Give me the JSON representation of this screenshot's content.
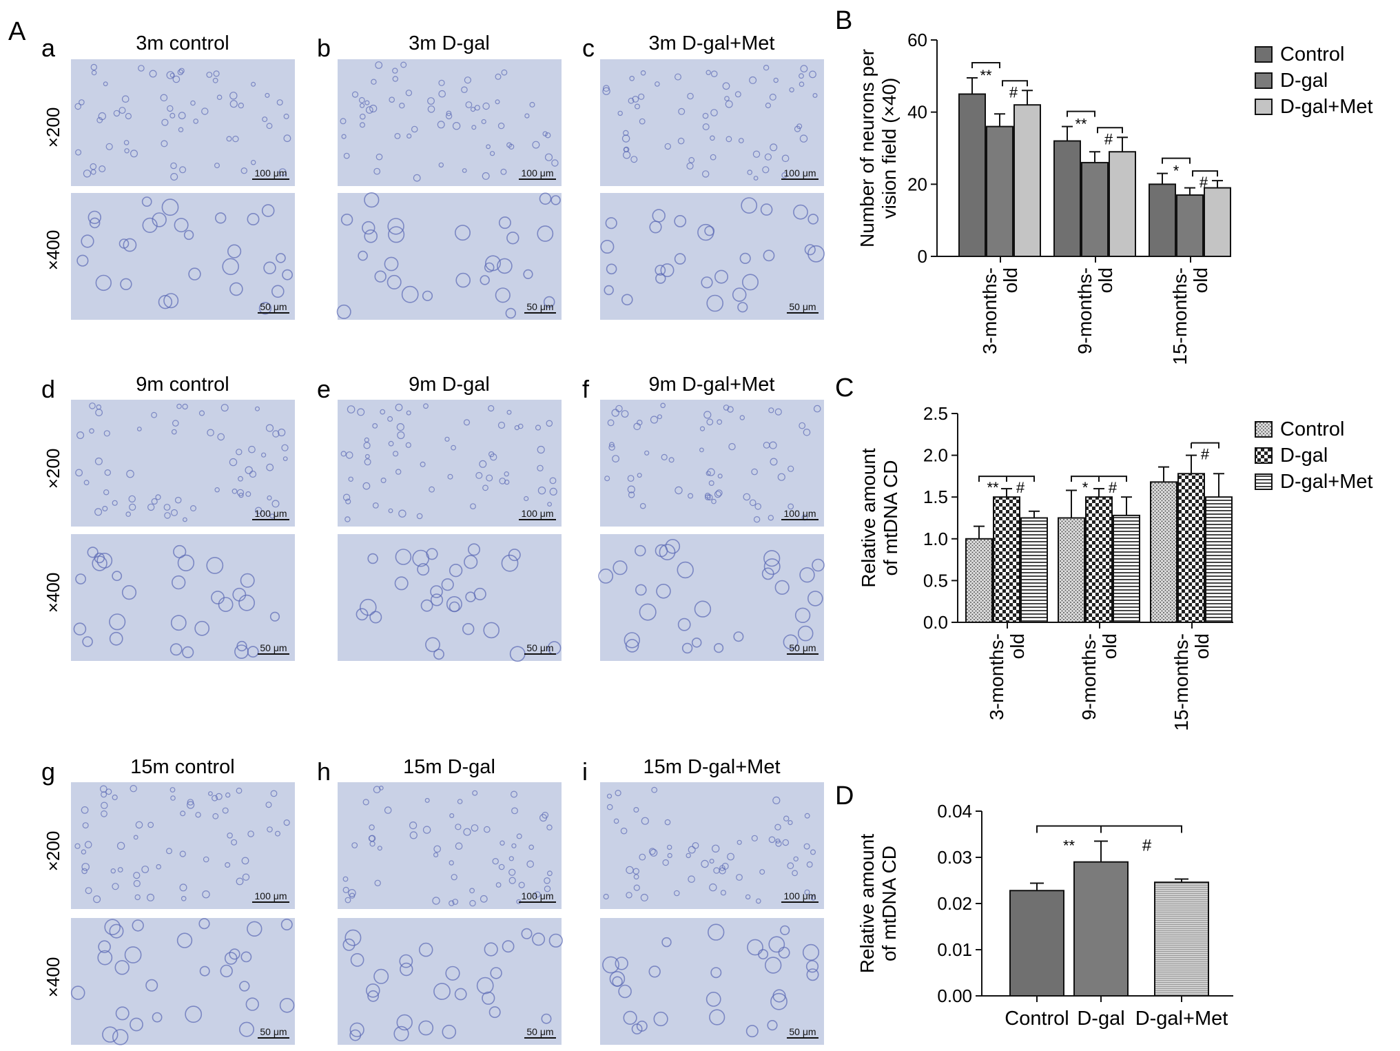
{
  "figure": {
    "panel_A": {
      "label": "A",
      "magnification_labels": [
        "×200",
        "×400"
      ],
      "scalebar_200": "100 μm",
      "scalebar_400": "50 μm",
      "subpanels": [
        {
          "letter": "a",
          "title": "3m control"
        },
        {
          "letter": "b",
          "title": "3m D-gal"
        },
        {
          "letter": "c",
          "title": "3m D-gal+Met"
        },
        {
          "letter": "d",
          "title": "9m control"
        },
        {
          "letter": "e",
          "title": "9m D-gal"
        },
        {
          "letter": "f",
          "title": "9m D-gal+Met"
        },
        {
          "letter": "g",
          "title": "15m control"
        },
        {
          "letter": "h",
          "title": "15m D-gal"
        },
        {
          "letter": "i",
          "title": "15m D-gal+Met"
        }
      ]
    },
    "colors": {
      "micrograph_bg": "#c9d1e6",
      "cell_stain": "#5a68b4",
      "bar_control": "#707070",
      "bar_dgal": "#7b7b7b",
      "bar_met": "#c4c4c4"
    }
  },
  "chart_data": [
    {
      "panel": "B",
      "type": "bar",
      "ylabel_lines": [
        "Number of neurons per",
        "vision field (×40)"
      ],
      "categories": [
        "3-months-old",
        "9-months-old",
        "15-months-old"
      ],
      "category_label_lines": [
        [
          "3-months-",
          "old"
        ],
        [
          "9-months-",
          "old"
        ],
        [
          "15-months-",
          "old"
        ]
      ],
      "ylim": [
        0,
        60
      ],
      "yticks": [
        "0",
        "20",
        "40",
        "60"
      ],
      "legend_position": "top-right",
      "series": [
        {
          "name": "Control",
          "values": [
            45,
            32,
            20
          ],
          "errors": [
            4.5,
            4,
            3
          ]
        },
        {
          "name": "D-gal",
          "values": [
            36,
            26,
            17
          ],
          "errors": [
            3.5,
            3,
            2
          ]
        },
        {
          "name": "D-gal+Met",
          "values": [
            42,
            29,
            19
          ],
          "errors": [
            4,
            4,
            2
          ]
        }
      ],
      "significance": [
        {
          "group": 0,
          "left": "**",
          "right": "#"
        },
        {
          "group": 1,
          "left": "**",
          "right": "#"
        },
        {
          "group": 2,
          "left": "*",
          "right": "#"
        }
      ]
    },
    {
      "panel": "C",
      "type": "bar",
      "ylabel_lines": [
        "Relative amount",
        "of mtDNA CD"
      ],
      "categories": [
        "3-months-old",
        "9-months-old",
        "15-months-old"
      ],
      "category_label_lines": [
        [
          "3-months-",
          "old"
        ],
        [
          "9-months-",
          "old"
        ],
        [
          "15-months-",
          "old"
        ]
      ],
      "ylim": [
        0,
        2.5
      ],
      "yticks": [
        "0.0",
        "0.5",
        "1.0",
        "1.5",
        "2.0",
        "2.5"
      ],
      "legend_position": "top-right",
      "series": [
        {
          "name": "Control",
          "values": [
            1.0,
            1.25,
            1.68
          ],
          "errors": [
            0.15,
            0.33,
            0.18
          ]
        },
        {
          "name": "D-gal",
          "values": [
            1.5,
            1.5,
            1.78
          ],
          "errors": [
            0.1,
            0.1,
            0.22
          ]
        },
        {
          "name": "D-gal+Met",
          "values": [
            1.25,
            1.28,
            1.5
          ],
          "errors": [
            0.08,
            0.22,
            0.28
          ]
        }
      ],
      "significance": [
        {
          "group": 0,
          "left": "**",
          "right": "#"
        },
        {
          "group": 1,
          "left": "*",
          "right": "#"
        },
        {
          "group": 2,
          "left": "",
          "right": "#"
        }
      ]
    },
    {
      "panel": "D",
      "type": "bar",
      "ylabel_lines": [
        "Relative amount",
        "of mtDNA CD"
      ],
      "categories": [
        "Control",
        "D-gal",
        "D-gal+Met"
      ],
      "ylim": [
        0,
        0.04
      ],
      "yticks": [
        "0.00",
        "0.01",
        "0.02",
        "0.03",
        "0.04"
      ],
      "values": [
        0.0228,
        0.029,
        0.0246
      ],
      "errors": [
        0.0016,
        0.0045,
        0.0007
      ],
      "significance": {
        "left": "**",
        "right": "#"
      }
    }
  ]
}
